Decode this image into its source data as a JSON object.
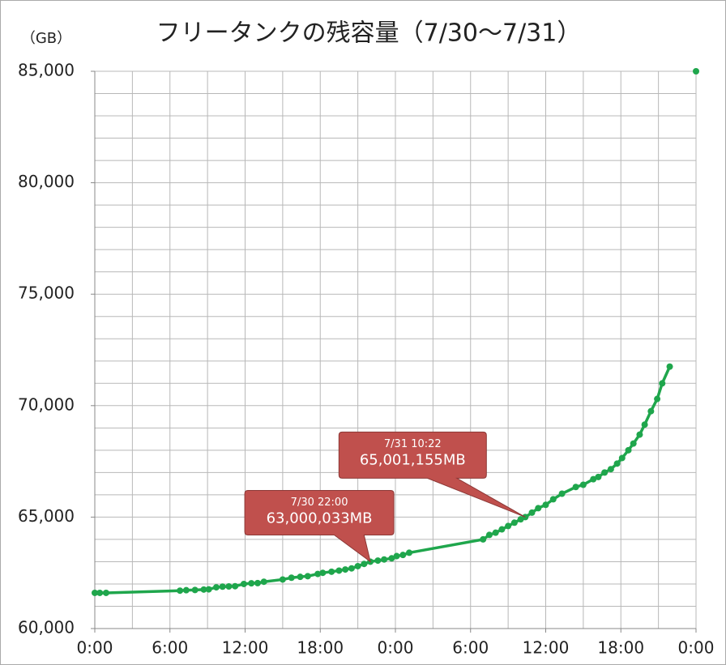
{
  "chart_data": {
    "type": "line",
    "title": "フリータンクの残容量（7/30〜7/31）",
    "y_label": "（GB）",
    "color": "#1fa64c",
    "x": [
      0,
      0.4,
      0.9,
      6.8,
      7.3,
      8.0,
      8.7,
      9.1,
      9.7,
      10.2,
      10.7,
      11.2,
      11.9,
      12.5,
      13.0,
      13.5,
      15.0,
      15.7,
      16.4,
      17.0,
      17.8,
      18.2,
      18.9,
      19.5,
      20.0,
      20.5,
      21.0,
      21.5,
      22.0,
      22.6,
      23.1,
      23.7,
      24.1,
      24.6,
      25.1,
      31.0,
      31.5,
      32.0,
      32.5,
      33.0,
      33.5,
      34.0,
      34.37,
      34.9,
      35.4,
      36.0,
      36.6,
      37.3,
      38.4,
      39.0,
      39.8,
      40.2,
      40.7,
      41.2,
      41.7,
      42.1,
      42.6,
      43.0,
      43.5,
      43.9,
      44.4,
      44.9,
      45.3,
      45.9,
      null,
      48
    ],
    "values": [
      61600,
      61600,
      61600,
      61700,
      61720,
      61730,
      61750,
      61760,
      61850,
      61880,
      61890,
      61900,
      62000,
      62030,
      62040,
      62100,
      62200,
      62280,
      62320,
      62350,
      62450,
      62500,
      62550,
      62600,
      62650,
      62700,
      62800,
      62900,
      63000,
      63050,
      63100,
      63150,
      63250,
      63300,
      63400,
      64000,
      64200,
      64300,
      64450,
      64600,
      64750,
      64900,
      65001,
      65200,
      65400,
      65550,
      65800,
      66050,
      66350,
      66450,
      66700,
      66800,
      67000,
      67150,
      67400,
      67650,
      68000,
      68300,
      68700,
      69150,
      69750,
      70300,
      71000,
      71750,
      null,
      85000
    ],
    "xlim": [
      0,
      48
    ],
    "xticks": [
      {
        "value": 0,
        "label": "0:00"
      },
      {
        "value": 6,
        "label": "6:00"
      },
      {
        "value": 12,
        "label": "12:00"
      },
      {
        "value": 18,
        "label": "18:00"
      },
      {
        "value": 24,
        "label": "0:00"
      },
      {
        "value": 30,
        "label": "6:00"
      },
      {
        "value": 36,
        "label": "12:00"
      },
      {
        "value": 42,
        "label": "18:00"
      },
      {
        "value": 48,
        "label": "0:00"
      }
    ],
    "xgrid": [
      0,
      3,
      6,
      9,
      12,
      15,
      18,
      21,
      24,
      27,
      30,
      33,
      36,
      39,
      42,
      45,
      48
    ],
    "ylim": [
      60000,
      85000
    ],
    "yticks": [
      {
        "value": 60000,
        "label": "60,000"
      },
      {
        "value": 65000,
        "label": "65,000"
      },
      {
        "value": 70000,
        "label": "70,000"
      },
      {
        "value": 75000,
        "label": "75,000"
      },
      {
        "value": 80000,
        "label": "80,000"
      },
      {
        "value": 85000,
        "label": "85,000"
      }
    ],
    "ygrid": [
      60000,
      61000,
      62000,
      63000,
      64000,
      65000,
      66000,
      67000,
      68000,
      69000,
      70000,
      71000,
      72000,
      73000,
      74000,
      75000,
      76000,
      77000,
      78000,
      79000,
      80000,
      81000,
      82000,
      83000,
      84000,
      85000
    ],
    "annotations": [
      {
        "x": 22,
        "y": 63000,
        "lines": [
          "7/30 22:00",
          "63,000,033MB"
        ]
      },
      {
        "x": 34.37,
        "y": 65001,
        "lines": [
          "7/31 10:22",
          "65,001,155MB"
        ]
      }
    ]
  }
}
